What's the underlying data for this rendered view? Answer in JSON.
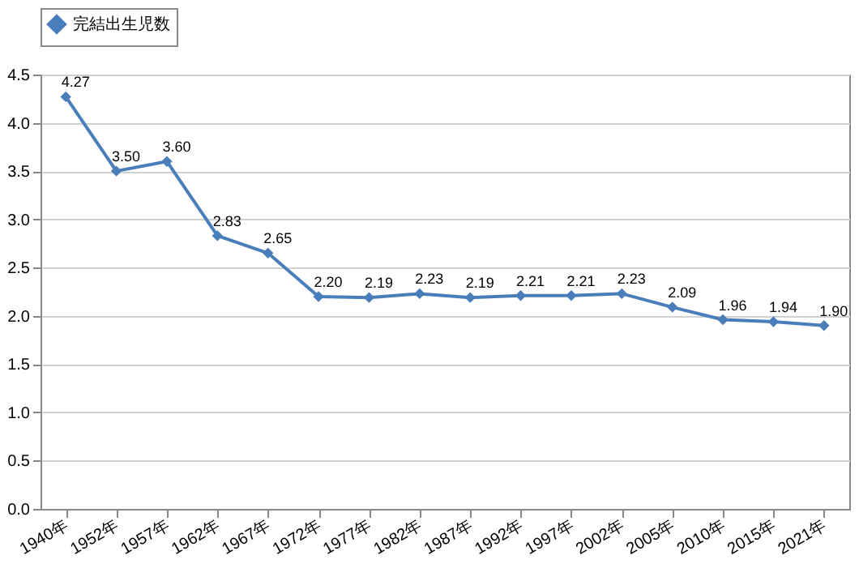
{
  "chart_data": {
    "type": "line",
    "categories": [
      "1940年",
      "1952年",
      "1957年",
      "1962年",
      "1967年",
      "1972年",
      "1977年",
      "1982年",
      "1987年",
      "1992年",
      "1997年",
      "2002年",
      "2005年",
      "2010年",
      "2015年",
      "2021年"
    ],
    "series": [
      {
        "name": "完結出生児数",
        "color": "#4a7ebb",
        "values": [
          4.27,
          3.5,
          3.6,
          2.83,
          2.65,
          2.2,
          2.19,
          2.23,
          2.19,
          2.21,
          2.21,
          2.23,
          2.09,
          1.96,
          1.94,
          1.9
        ],
        "value_labels": [
          "4.27",
          "3.50",
          "3.60",
          "2.83",
          "2.65",
          "2.20",
          "2.19",
          "2.23",
          "2.19",
          "2.21",
          "2.21",
          "2.23",
          "2.09",
          "1.96",
          "1.94",
          "1.90"
        ]
      }
    ],
    "ylim": [
      0,
      4.5
    ],
    "yticks": [
      {
        "value": 0,
        "label": "0.0"
      },
      {
        "value": 0.5,
        "label": "0.5"
      },
      {
        "value": 1,
        "label": "1.0"
      },
      {
        "value": 1.5,
        "label": "1.5"
      },
      {
        "value": 2,
        "label": "2.0"
      },
      {
        "value": 2.5,
        "label": "2.5"
      },
      {
        "value": 3,
        "label": "3.0"
      },
      {
        "value": 3.5,
        "label": "3.5"
      },
      {
        "value": 4,
        "label": "4.0"
      },
      {
        "value": 4.5,
        "label": "4.5"
      }
    ],
    "grid": "y",
    "legend": "top",
    "marker": "diamond",
    "line_style": "solid"
  }
}
